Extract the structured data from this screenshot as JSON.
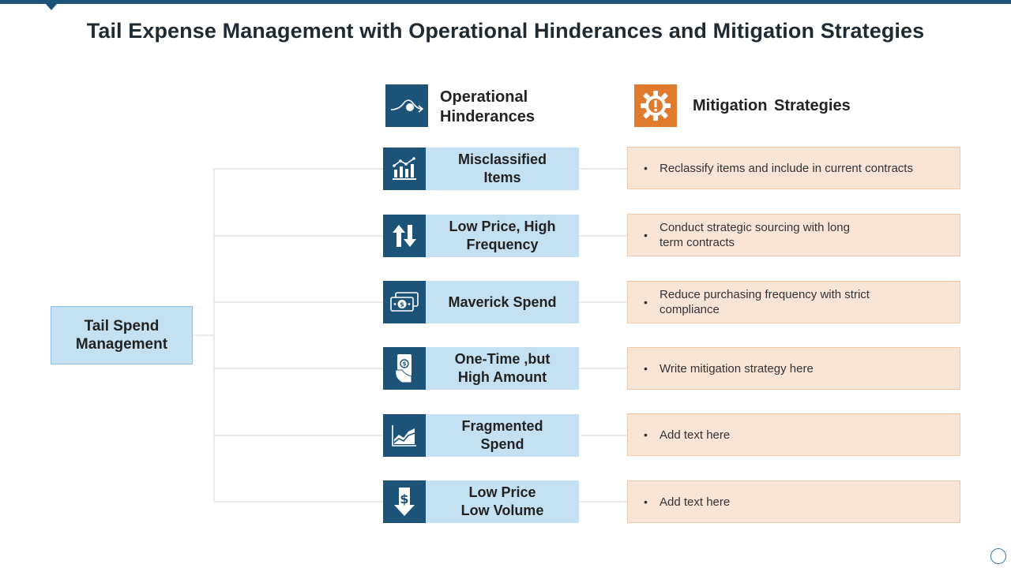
{
  "title": "Tail Expense Management with Operational Hinderances and Mitigation Strategies",
  "root": {
    "label": "Tail Spend Management"
  },
  "headers": {
    "hinderances": {
      "label": "Operational Hinderances",
      "icon": "curve-arrow-icon"
    },
    "strategies": {
      "label": "Mitigation  Strategies",
      "icon": "gear-alert-icon"
    }
  },
  "rows": [
    {
      "hinderance": "Misclassified Items",
      "icon": "bar-chart-icon",
      "strategy": "Reclassify items and include in current  contracts"
    },
    {
      "hinderance": "Low Price, High Frequency",
      "icon": "up-down-arrows-icon",
      "strategy": "Conduct strategic sourcing with long term contracts"
    },
    {
      "hinderance": "Maverick Spend",
      "icon": "cash-icon",
      "strategy": "Reduce purchasing frequency  with strict compliance"
    },
    {
      "hinderance": "One-Time ,but High Amount",
      "icon": "hand-bill-icon",
      "strategy": "Write mitigation strategy  here"
    },
    {
      "hinderance": "Fragmented Spend",
      "icon": "area-chart-icon",
      "strategy": "Add text here"
    },
    {
      "hinderance": "Low Price Low Volume",
      "icon": "dollar-down-arrow-icon",
      "strategy": "Add text here"
    }
  ],
  "colors": {
    "accent": "#1c5378",
    "orange": "#e07b2e",
    "light_blue": "#c3e1f2",
    "peach": "#fae4d5"
  }
}
